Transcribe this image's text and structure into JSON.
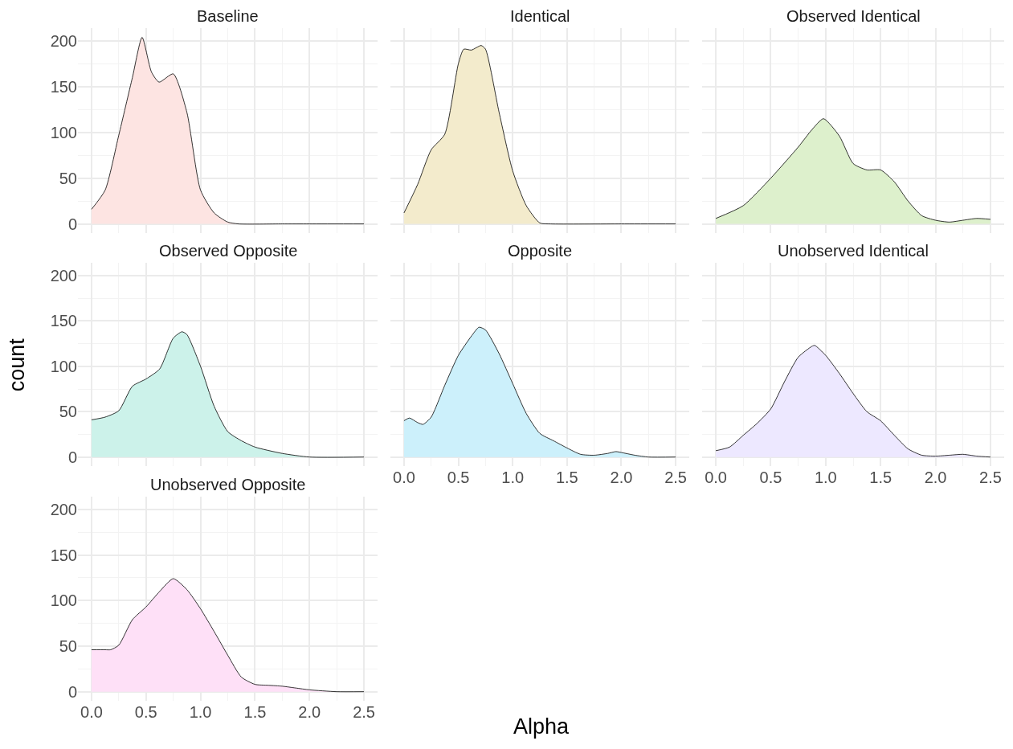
{
  "chart_data": [
    {
      "type": "area",
      "title": "Baseline",
      "tick_labels": "y",
      "grid": true,
      "xlim": [
        -0.125,
        2.625
      ],
      "ylim": [
        -10,
        214
      ],
      "xticks": [
        0,
        0.5,
        1,
        1.5,
        2,
        2.5
      ],
      "yticks": [
        0,
        50,
        100,
        150,
        200
      ],
      "series": [
        {
          "color": "#fde4e2",
          "x": [
            0,
            0.125,
            0.25,
            0.375,
            0.464,
            0.55,
            0.62,
            0.75,
            0.875,
            1.0,
            1.125,
            1.25,
            1.35,
            1.75,
            2.0,
            2.5
          ],
          "values": [
            16,
            37,
            97,
            160,
            204,
            166,
            155,
            164,
            122,
            37,
            12,
            2,
            0,
            0,
            0,
            0
          ]
        }
      ]
    },
    {
      "type": "area",
      "title": "Identical",
      "tick_labels": false,
      "grid": true,
      "xlim": [
        -0.125,
        2.625
      ],
      "ylim": [
        -10,
        214
      ],
      "xticks": [
        0,
        0.5,
        1,
        1.5,
        2,
        2.5
      ],
      "yticks": [
        0,
        50,
        100,
        150,
        200
      ],
      "series": [
        {
          "color": "#f3ebcc",
          "x": [
            0,
            0.125,
            0.25,
            0.375,
            0.5,
            0.55,
            0.62,
            0.71,
            0.75,
            0.875,
            1.0,
            1.125,
            1.25,
            1.35,
            2.0,
            2.5
          ],
          "values": [
            12,
            43,
            81,
            98,
            175,
            191,
            190,
            195,
            191,
            122,
            58,
            20,
            1,
            0,
            0,
            0
          ]
        }
      ]
    },
    {
      "type": "area",
      "title": "Observed Identical",
      "tick_labels": false,
      "grid": true,
      "xlim": [
        -0.125,
        2.625
      ],
      "ylim": [
        -10,
        214
      ],
      "xticks": [
        0,
        0.5,
        1,
        1.5,
        2,
        2.5
      ],
      "yticks": [
        0,
        50,
        100,
        150,
        200
      ],
      "series": [
        {
          "color": "#ddf0cc",
          "x": [
            0,
            0.25,
            0.5,
            0.75,
            0.875,
            0.98,
            1.125,
            1.25,
            1.375,
            1.5,
            1.625,
            1.75,
            1.875,
            2.0,
            2.125,
            2.25,
            2.375,
            2.5
          ],
          "values": [
            6,
            20,
            50,
            84,
            103,
            115,
            96,
            66,
            59,
            59,
            46,
            25,
            9,
            4,
            2,
            4,
            6,
            5
          ]
        }
      ]
    },
    {
      "type": "area",
      "title": "Observed Opposite",
      "ylabel": "count",
      "tick_labels": "y",
      "grid": true,
      "xlim": [
        -0.125,
        2.625
      ],
      "ylim": [
        -10,
        214
      ],
      "xticks": [
        0,
        0.5,
        1,
        1.5,
        2,
        2.5
      ],
      "yticks": [
        0,
        50,
        100,
        150,
        200
      ],
      "series": [
        {
          "color": "#ccf2ea",
          "x": [
            0,
            0.125,
            0.25,
            0.375,
            0.5,
            0.625,
            0.75,
            0.83,
            0.875,
            1.0,
            1.125,
            1.25,
            1.375,
            1.5,
            1.75,
            2.0,
            2.5
          ],
          "values": [
            41,
            44,
            51,
            78,
            86,
            97,
            131,
            138,
            135,
            100,
            56,
            28,
            18,
            11,
            4,
            0,
            0
          ]
        }
      ]
    },
    {
      "type": "area",
      "title": "Opposite",
      "xlabel": "Alpha",
      "tick_labels": "x",
      "grid": true,
      "xlim": [
        -0.125,
        2.625
      ],
      "ylim": [
        -10,
        214
      ],
      "xticks": [
        {
          "value": 0,
          "label": "0.0"
        },
        {
          "value": 0.5,
          "label": "0.5"
        },
        {
          "value": 1,
          "label": "1.0"
        },
        {
          "value": 1.5,
          "label": "1.5"
        },
        {
          "value": 2,
          "label": "2.0"
        },
        {
          "value": 2.5,
          "label": "2.5"
        }
      ],
      "yticks": [
        0,
        50,
        100,
        150,
        200
      ],
      "series": [
        {
          "color": "#ccf0fb",
          "x": [
            0,
            0.05,
            0.125,
            0.175,
            0.25,
            0.375,
            0.5,
            0.625,
            0.69,
            0.75,
            0.875,
            1.0,
            1.125,
            1.25,
            1.375,
            1.5,
            1.625,
            1.75,
            1.875,
            1.95,
            2.0,
            2.125,
            2.25,
            2.5
          ],
          "values": [
            40,
            43,
            38,
            36,
            44,
            79,
            112,
            134,
            143,
            140,
            114,
            81,
            48,
            26,
            18,
            10,
            3,
            2,
            4,
            6,
            5,
            2,
            0,
            0
          ]
        }
      ]
    },
    {
      "type": "area",
      "title": "Unobserved Identical",
      "tick_labels": "x",
      "grid": true,
      "xlim": [
        -0.125,
        2.625
      ],
      "ylim": [
        -10,
        214
      ],
      "xticks": [
        {
          "value": 0,
          "label": "0.0"
        },
        {
          "value": 0.5,
          "label": "0.5"
        },
        {
          "value": 1,
          "label": "1.0"
        },
        {
          "value": 1.5,
          "label": "1.5"
        },
        {
          "value": 2,
          "label": "2.0"
        },
        {
          "value": 2.5,
          "label": "2.5"
        }
      ],
      "yticks": [
        0,
        50,
        100,
        150,
        200
      ],
      "series": [
        {
          "color": "#ede8ff",
          "x": [
            0,
            0.125,
            0.25,
            0.375,
            0.5,
            0.625,
            0.75,
            0.875,
            0.9,
            1.0,
            1.125,
            1.25,
            1.375,
            1.5,
            1.625,
            1.75,
            1.875,
            2.0,
            2.125,
            2.25,
            2.375,
            2.5
          ],
          "values": [
            7,
            11,
            24,
            37,
            53,
            83,
            110,
            122,
            123,
            112,
            92,
            70,
            50,
            40,
            24,
            9,
            2,
            1,
            2,
            3,
            1,
            0
          ]
        }
      ]
    },
    {
      "type": "area",
      "title": "Unobserved Opposite",
      "grid": true,
      "xlim": [
        -0.125,
        2.625
      ],
      "ylim": [
        -10,
        214
      ],
      "xticks": [
        {
          "value": 0,
          "label": "0.0"
        },
        {
          "value": 0.5,
          "label": "0.5"
        },
        {
          "value": 1,
          "label": "1.0"
        },
        {
          "value": 1.5,
          "label": "1.5"
        },
        {
          "value": 2,
          "label": "2.0"
        },
        {
          "value": 2.5,
          "label": "2.5"
        }
      ],
      "yticks": [
        0,
        50,
        100,
        150,
        200
      ],
      "series": [
        {
          "color": "#fee0f7",
          "x": [
            0,
            0.125,
            0.175,
            0.25,
            0.375,
            0.5,
            0.625,
            0.75,
            0.875,
            1.0,
            1.125,
            1.25,
            1.375,
            1.5,
            1.625,
            1.75,
            1.875,
            2.0,
            2.25,
            2.5
          ],
          "values": [
            46,
            46,
            46,
            51,
            79,
            93,
            110,
            124,
            112,
            91,
            66,
            40,
            16,
            8,
            7,
            6,
            4,
            2,
            0,
            0
          ]
        }
      ]
    }
  ]
}
